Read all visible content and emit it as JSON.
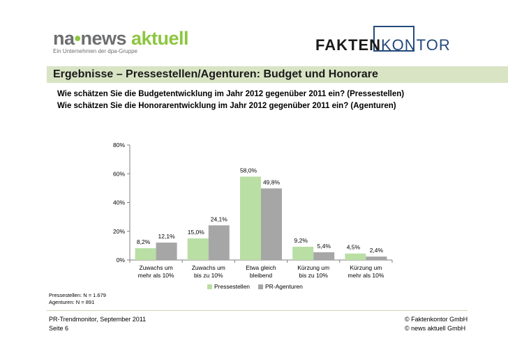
{
  "logos": {
    "news_aktuell": {
      "na": "na",
      "dot": "•",
      "news": "news",
      "aktuell": "aktuell",
      "tagline": "Ein Unternehmen der dpa-Gruppe"
    },
    "faktenkontor": {
      "part1": "FAKTEN",
      "part2": "KONTOR"
    }
  },
  "header": {
    "title": "Ergebnisse – Pressestellen/Agenturen: Budget und Honorare",
    "question1": "Wie schätzen Sie die Budgetentwicklung im Jahr 2012 gegenüber 2011 ein? (Pressestellen)",
    "question2": "Wie schätzen Sie die Honorarentwicklung im Jahr 2012 gegenüber 2011 ein? (Agenturen)"
  },
  "chart_data": {
    "type": "bar",
    "categories": [
      [
        "Zuwachs um",
        "mehr als 10%"
      ],
      [
        "Zuwachs um",
        "bis zu 10%"
      ],
      [
        "Etwa gleich",
        "bleibend"
      ],
      [
        "Kürzung um",
        "bis zu 10%"
      ],
      [
        "Kürzung um",
        "mehr als 10%"
      ]
    ],
    "series": [
      {
        "name": "Pressestellen",
        "color": "#b9dfa4",
        "values": [
          8.2,
          15.0,
          58.0,
          9.2,
          4.5
        ],
        "labels": [
          "8,2%",
          "15,0%",
          "58,0%",
          "9,2%",
          "4,5%"
        ]
      },
      {
        "name": "PR-Agenturen",
        "color": "#a6a6a6",
        "values": [
          12.1,
          24.1,
          49.8,
          5.4,
          2.4
        ],
        "labels": [
          "12,1%",
          "24,1%",
          "49,8%",
          "5,4%",
          "2,4%"
        ]
      }
    ],
    "ylim": [
      0,
      80
    ],
    "yticks": [
      0,
      20,
      40,
      60,
      80
    ],
    "ytick_labels": [
      "0%",
      "20%",
      "40%",
      "60%",
      "80%"
    ],
    "legend_position": "bottom"
  },
  "footnotes": {
    "pressestellen": "Pressestellen: N = 1.679",
    "agenturen": "Agenturen:     N = 891"
  },
  "footer": {
    "source": "PR-Trendmonitor, September 2011",
    "page": "Seite 6",
    "copyright1": "© Faktenkontor GmbH",
    "copyright2": "© news aktuell GmbH"
  }
}
